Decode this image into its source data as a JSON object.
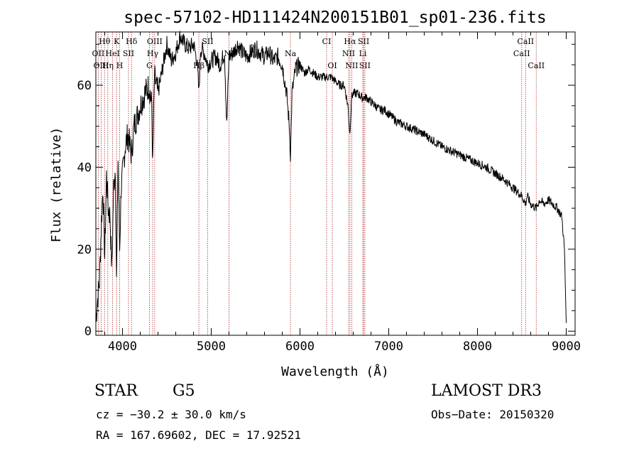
{
  "chart_data": {
    "type": "line",
    "title": "spec-57102-HD111424N200151B01_sp01-236.fits",
    "xlabel": "Wavelength (Å)",
    "ylabel": "Flux (relative)",
    "xlim": [
      3700,
      9100
    ],
    "ylim": [
      -1,
      73
    ],
    "x_ticks": [
      4000,
      5000,
      6000,
      7000,
      8000,
      9000
    ],
    "y_ticks": [
      0,
      20,
      40,
      60
    ],
    "series": [
      {
        "name": "flux",
        "x": [
          3700,
          3720,
          3740,
          3760,
          3780,
          3800,
          3820,
          3840,
          3860,
          3880,
          3900,
          3920,
          3933,
          3950,
          3968,
          3985,
          4000,
          4030,
          4060,
          4101,
          4130,
          4160,
          4200,
          4250,
          4300,
          4330,
          4340,
          4360,
          4400,
          4450,
          4500,
          4550,
          4600,
          4650,
          4700,
          4750,
          4800,
          4840,
          4861,
          4880,
          4920,
          4960,
          5000,
          5050,
          5100,
          5150,
          5175,
          5200,
          5250,
          5300,
          5350,
          5400,
          5450,
          5500,
          5550,
          5600,
          5650,
          5700,
          5750,
          5800,
          5850,
          5880,
          5893,
          5910,
          5950,
          6000,
          6050,
          6100,
          6150,
          6200,
          6250,
          6300,
          6350,
          6400,
          6450,
          6500,
          6540,
          6563,
          6580,
          6600,
          6650,
          6700,
          6750,
          6800,
          6850,
          6900,
          6950,
          7000,
          7100,
          7200,
          7300,
          7400,
          7500,
          7600,
          7700,
          7800,
          7900,
          8000,
          8100,
          8200,
          8300,
          8400,
          8450,
          8500,
          8542,
          8560,
          8600,
          8662,
          8700,
          8750,
          8800,
          8850,
          8900,
          8950,
          8980,
          9000
        ],
        "values": [
          3,
          8,
          12,
          25,
          35,
          18,
          38,
          30,
          28,
          15,
          35,
          40,
          12,
          42,
          20,
          35,
          38,
          45,
          48,
          43,
          50,
          52,
          55,
          58,
          60,
          55,
          40,
          62,
          58,
          64,
          70,
          66,
          68,
          72,
          70,
          69,
          70,
          66,
          58,
          69,
          68,
          65,
          66,
          67,
          65,
          68,
          50,
          67,
          68,
          70,
          68,
          67,
          68,
          69,
          68,
          67,
          68,
          66,
          67,
          65,
          58,
          50,
          43,
          58,
          64,
          65,
          63,
          64,
          63,
          62,
          62,
          62,
          62,
          61,
          60,
          60,
          55,
          48,
          57,
          58,
          58,
          57,
          57,
          56,
          55,
          54,
          54,
          53,
          51,
          50,
          49,
          48,
          46.5,
          45,
          44,
          43,
          42,
          41,
          40,
          38.5,
          37,
          35,
          34,
          33,
          31,
          33,
          31,
          30,
          32,
          31,
          32,
          31,
          30,
          28,
          20,
          2
        ]
      }
    ],
    "lines_top": [
      {
        "label": "Hθ",
        "x": 3798
      },
      {
        "label": "K",
        "x": 3934
      },
      {
        "label": "Hδ",
        "x": 4102
      },
      {
        "label": "OIII",
        "x": 4363
      },
      {
        "label": "SII",
        "x": 4960
      },
      {
        "label": "CI",
        "x": 6300
      },
      {
        "label": "Hα",
        "x": 6563
      },
      {
        "label": "SII",
        "x": 6717
      },
      {
        "label": "CaII",
        "x": 8542
      }
    ],
    "lines_mid": [
      {
        "label": "OII",
        "x": 3727
      },
      {
        "label": "HeI",
        "x": 3889
      },
      {
        "label": "SII",
        "x": 4068
      },
      {
        "label": "Hγ",
        "x": 4340
      },
      {
        "label": "NI",
        "x": 5200
      },
      {
        "label": "Na",
        "x": 5893
      },
      {
        "label": "NII",
        "x": 6548
      },
      {
        "label": "Li",
        "x": 6708
      },
      {
        "label": "CaII",
        "x": 8498
      }
    ],
    "lines_low": [
      {
        "label": "OIII",
        "x": 3760
      },
      {
        "label": "Hη",
        "x": 3835
      },
      {
        "label": "H",
        "x": 3968
      },
      {
        "label": "G",
        "x": 4304
      },
      {
        "label": "Hβ",
        "x": 4861
      },
      {
        "label": "OI",
        "x": 6364
      },
      {
        "label": "NII",
        "x": 6583
      },
      {
        "label": "SII",
        "x": 6731
      },
      {
        "label": "CaII",
        "x": 8662
      }
    ]
  },
  "info": {
    "class_label": "STAR",
    "subclass": "G5",
    "survey": "LAMOST DR3",
    "cz": "cz = −30.2 ± 30.0 km/s",
    "obs_date": "Obs−Date: 20150320",
    "coords": "RA = 167.69602, DEC =  17.92521"
  }
}
